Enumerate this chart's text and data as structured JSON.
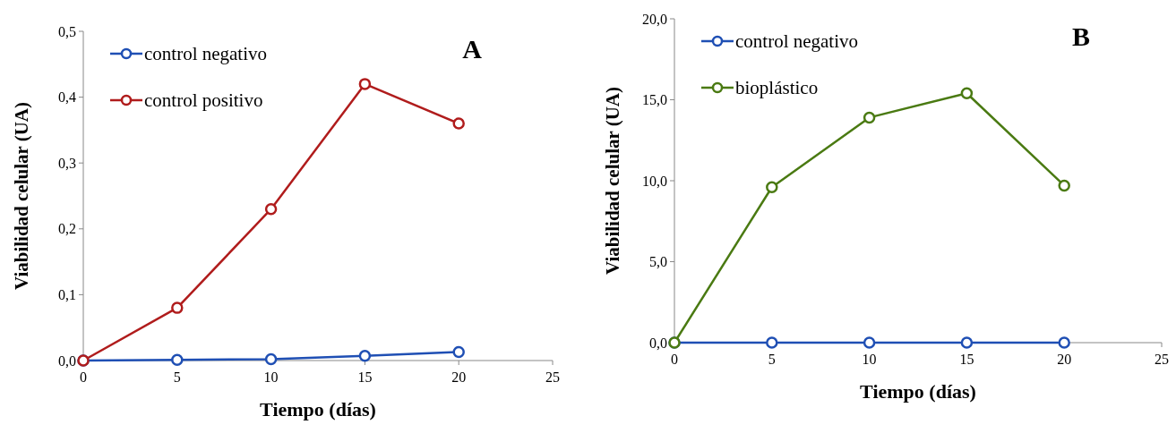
{
  "chart_data": [
    {
      "type": "line",
      "title": "A",
      "xlabel": "Tiempo (días)",
      "ylabel": "Viabilidad celular (UA)",
      "x": [
        0,
        5,
        10,
        15,
        20
      ],
      "xlim": [
        0,
        25
      ],
      "xticks": [
        0,
        5,
        10,
        15,
        20,
        25
      ],
      "ylim": [
        0,
        0.5
      ],
      "yticks": [
        {
          "value": 0,
          "label": "0,0"
        },
        {
          "value": 0.1,
          "label": "0,1"
        },
        {
          "value": 0.2,
          "label": "0,2"
        },
        {
          "value": 0.3,
          "label": "0,3"
        },
        {
          "value": 0.4,
          "label": "0,4"
        },
        {
          "value": 0.5,
          "label": "0,5"
        }
      ],
      "marker": "circle",
      "legend": "top left",
      "grid": false,
      "series": [
        {
          "name": "control negativo",
          "color": "#1f4fb4",
          "values": [
            0,
            0.001,
            0.002,
            0.007,
            0.013
          ]
        },
        {
          "name": "control positivo",
          "color": "#b01c1c",
          "values": [
            0,
            0.08,
            0.23,
            0.42,
            0.36
          ]
        }
      ]
    },
    {
      "type": "line",
      "title": "B",
      "xlabel": "Tiempo (días)",
      "ylabel": "Viabilidad celular (UA)",
      "x": [
        0,
        5,
        10,
        15,
        20
      ],
      "xlim": [
        0,
        25
      ],
      "xticks": [
        0,
        5,
        10,
        15,
        20,
        25
      ],
      "ylim": [
        0,
        20
      ],
      "yticks": [
        {
          "value": 0,
          "label": "0,0"
        },
        {
          "value": 5,
          "label": "5,0"
        },
        {
          "value": 10,
          "label": "10,0"
        },
        {
          "value": 15,
          "label": "15,0"
        },
        {
          "value": 20,
          "label": "20,0"
        }
      ],
      "marker": "circle",
      "legend": "top left",
      "grid": false,
      "series": [
        {
          "name": "control negativo",
          "color": "#1f4fb4",
          "values": [
            0,
            0,
            0,
            0,
            0
          ]
        },
        {
          "name": "bioplástico",
          "color": "#4a7a12",
          "values": [
            0,
            9.6,
            13.9,
            15.4,
            9.7
          ]
        }
      ]
    }
  ]
}
